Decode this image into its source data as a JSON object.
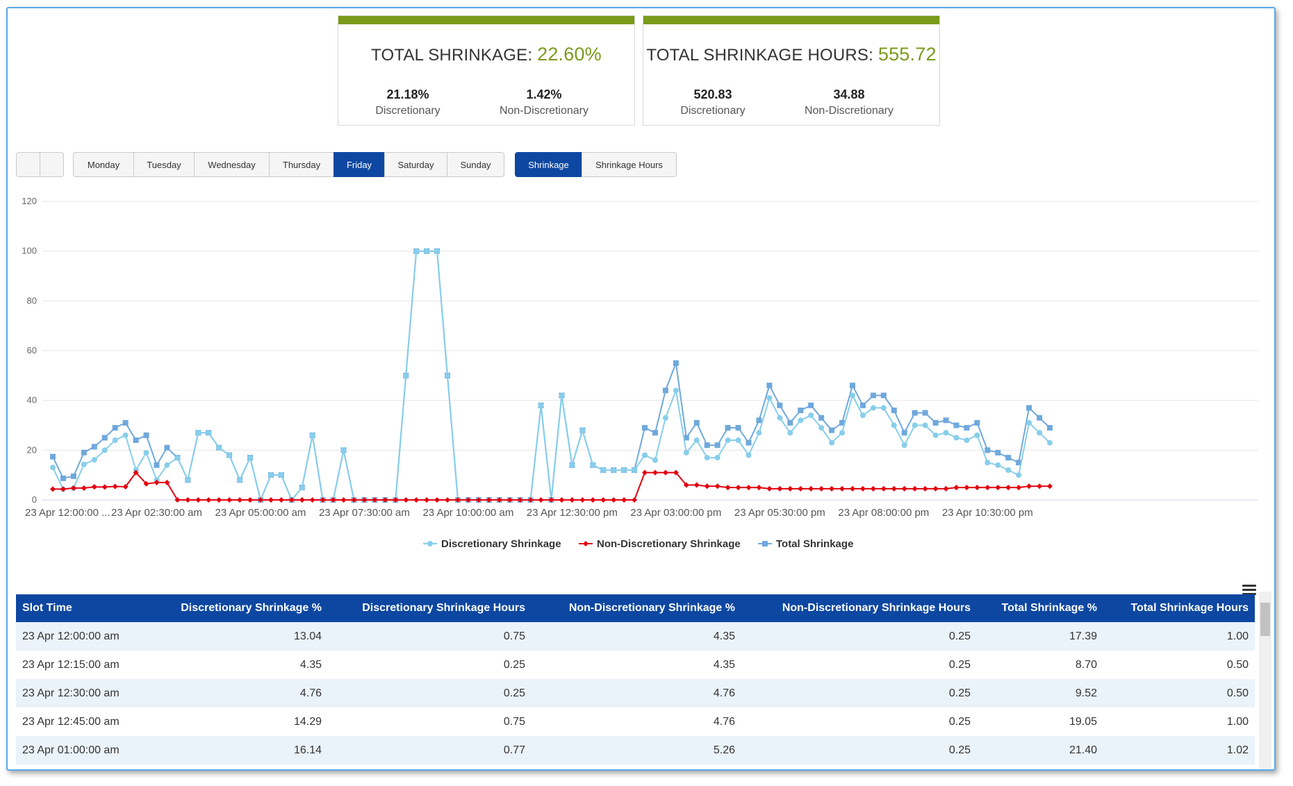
{
  "cards": [
    {
      "title": "TOTAL SHRINKAGE:",
      "total": "22.60%",
      "stats": [
        {
          "value": "21.18%",
          "label": "Discretionary"
        },
        {
          "value": "1.42%",
          "label": "Non-Discretionary"
        }
      ]
    },
    {
      "title": "TOTAL SHRINKAGE HOURS:",
      "total": "555.72",
      "stats": [
        {
          "value": "520.83",
          "label": "Discretionary"
        },
        {
          "value": "34.88",
          "label": "Non-Discretionary"
        }
      ]
    }
  ],
  "days": [
    "Monday",
    "Tuesday",
    "Wednesday",
    "Thursday",
    "Friday",
    "Saturday",
    "Sunday"
  ],
  "active_day": "Friday",
  "views": [
    "Shrinkage",
    "Shrinkage Hours"
  ],
  "active_view": "Shrinkage",
  "colors": {
    "accent": "#7a9a1a",
    "active": "#0d47a1",
    "discretionary": "#87ceeb",
    "non_discretionary": "#e3000f",
    "total": "#6fa8dc"
  },
  "chart_data": {
    "type": "line",
    "ylim": [
      0,
      120
    ],
    "yticks": [
      0,
      20,
      40,
      60,
      80,
      100,
      120
    ],
    "xtick_labels": [
      "23 Apr 12:00:00 ...",
      "23 Apr 02:30:00 am",
      "23 Apr 05:00:00 am",
      "23 Apr 07:30:00 am",
      "23 Apr 10:00:00 am",
      "23 Apr 12:30:00 pm",
      "23 Apr 03:00:00 pm",
      "23 Apr 05:30:00 pm",
      "23 Apr 08:00:00 pm",
      "23 Apr 10:30:00 pm"
    ],
    "series": [
      {
        "name": "Discretionary Shrinkage",
        "values": [
          13.04,
          4.35,
          4.76,
          14.29,
          16.14,
          20,
          24,
          26,
          12,
          19,
          8,
          14,
          17,
          8,
          27,
          27,
          21,
          18,
          8,
          17,
          0,
          10,
          10,
          0,
          5,
          26,
          0,
          0,
          20,
          0,
          0,
          0,
          0,
          0,
          50,
          100,
          100,
          100,
          50,
          0,
          0,
          0,
          0,
          0,
          0,
          0,
          0,
          38,
          0,
          42,
          14,
          28,
          14,
          12,
          12,
          12,
          12,
          18,
          16,
          33,
          44,
          19,
          24,
          17,
          17,
          24,
          24,
          18,
          27,
          41,
          33,
          27,
          32,
          34,
          29,
          23,
          27,
          42,
          34,
          37,
          37,
          30,
          22,
          30,
          30,
          26,
          27,
          25,
          24,
          26,
          15,
          14,
          12,
          10,
          31,
          27,
          23
        ]
      },
      {
        "name": "Non-Discretionary Shrinkage",
        "values": [
          4.35,
          4.35,
          4.76,
          4.76,
          5.26,
          5.2,
          5.4,
          5.3,
          11,
          6.5,
          7,
          7,
          0,
          0,
          0,
          0,
          0,
          0,
          0,
          0,
          0,
          0,
          0,
          0,
          0,
          0,
          0,
          0,
          0,
          0,
          0,
          0,
          0,
          0,
          0,
          0,
          0,
          0,
          0,
          0,
          0,
          0,
          0,
          0,
          0,
          0,
          0,
          0,
          0,
          0,
          0,
          0,
          0,
          0,
          0,
          0,
          0,
          11,
          11,
          11,
          11,
          6,
          6,
          5.5,
          5.5,
          5,
          5,
          5,
          5,
          4.5,
          4.5,
          4.5,
          4.5,
          4.5,
          4.5,
          4.5,
          4.5,
          4.5,
          4.5,
          4.5,
          4.5,
          4.5,
          4.5,
          4.5,
          4.5,
          4.5,
          4.5,
          5,
          5,
          5,
          5,
          5,
          5,
          5,
          5.5,
          5.5,
          5.5
        ]
      },
      {
        "name": "Total Shrinkage",
        "values": [
          17.39,
          8.7,
          9.52,
          19.05,
          21.4,
          25,
          29,
          31,
          24,
          26,
          14,
          21,
          17,
          8,
          27,
          27,
          21,
          18,
          8,
          17,
          0,
          10,
          10,
          0,
          5,
          26,
          0,
          0,
          20,
          0,
          0,
          0,
          0,
          0,
          50,
          100,
          100,
          100,
          50,
          0,
          0,
          0,
          0,
          0,
          0,
          0,
          0,
          38,
          0,
          42,
          14,
          28,
          14,
          12,
          12,
          12,
          12,
          29,
          27,
          44,
          55,
          25,
          31,
          22,
          22,
          29,
          29,
          23,
          32,
          46,
          38,
          31,
          36,
          38,
          33,
          28,
          31,
          46,
          38,
          42,
          42,
          36,
          27,
          35,
          35,
          31,
          32,
          30,
          29,
          31,
          20,
          19,
          17,
          15,
          37,
          33,
          29
        ]
      }
    ]
  },
  "table": {
    "headers": [
      "Slot Time",
      "Discretionary Shrinkage %",
      "Discretionary Shrinkage Hours",
      "Non-Discretionary Shrinkage %",
      "Non-Discretionary Shrinkage Hours",
      "Total Shrinkage %",
      "Total Shrinkage Hours"
    ],
    "rows": [
      [
        "23 Apr 12:00:00 am",
        "13.04",
        "0.75",
        "4.35",
        "0.25",
        "17.39",
        "1.00"
      ],
      [
        "23 Apr 12:15:00 am",
        "4.35",
        "0.25",
        "4.35",
        "0.25",
        "8.70",
        "0.50"
      ],
      [
        "23 Apr 12:30:00 am",
        "4.76",
        "0.25",
        "4.76",
        "0.25",
        "9.52",
        "0.50"
      ],
      [
        "23 Apr 12:45:00 am",
        "14.29",
        "0.75",
        "4.76",
        "0.25",
        "19.05",
        "1.00"
      ],
      [
        "23 Apr 01:00:00 am",
        "16.14",
        "0.77",
        "5.26",
        "0.25",
        "21.40",
        "1.02"
      ]
    ]
  }
}
